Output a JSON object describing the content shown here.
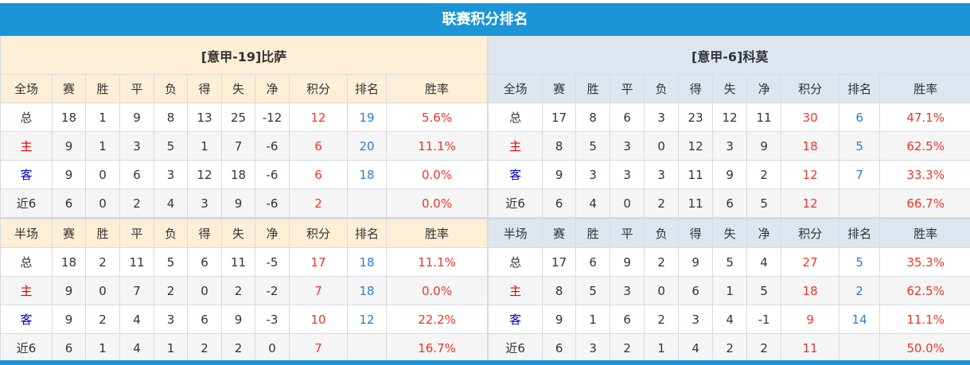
{
  "title": "联赛积分排名",
  "columns": [
    "赛",
    "胜",
    "平",
    "负",
    "得",
    "失",
    "净",
    "积分",
    "排名",
    "胜率"
  ],
  "teams": [
    {
      "header": "[意甲-19]比萨",
      "sections": [
        {
          "label": "全场",
          "rows": [
            [
              "总",
              "18",
              "1",
              "9",
              "8",
              "13",
              "25",
              "-12",
              "12",
              "19",
              "5.6%"
            ],
            [
              "主",
              "9",
              "1",
              "3",
              "5",
              "1",
              "7",
              "-6",
              "6",
              "20",
              "11.1%"
            ],
            [
              "客",
              "9",
              "0",
              "6",
              "3",
              "12",
              "18",
              "-6",
              "6",
              "18",
              "0.0%"
            ],
            [
              "近6",
              "6",
              "0",
              "2",
              "4",
              "3",
              "9",
              "-6",
              "2",
              "",
              "0.0%"
            ]
          ]
        },
        {
          "label": "半场",
          "rows": [
            [
              "总",
              "18",
              "2",
              "11",
              "5",
              "6",
              "11",
              "-5",
              "17",
              "18",
              "11.1%"
            ],
            [
              "主",
              "9",
              "0",
              "7",
              "2",
              "0",
              "2",
              "-2",
              "7",
              "18",
              "0.0%"
            ],
            [
              "客",
              "9",
              "2",
              "4",
              "3",
              "6",
              "9",
              "-3",
              "10",
              "12",
              "22.2%"
            ],
            [
              "近6",
              "6",
              "1",
              "4",
              "1",
              "2",
              "2",
              "0",
              "7",
              "",
              "16.7%"
            ]
          ]
        }
      ]
    },
    {
      "header": "[意甲-6]科莫",
      "sections": [
        {
          "label": "全场",
          "rows": [
            [
              "总",
              "17",
              "8",
              "6",
              "3",
              "23",
              "12",
              "11",
              "30",
              "6",
              "47.1%"
            ],
            [
              "主",
              "8",
              "5",
              "3",
              "0",
              "12",
              "3",
              "9",
              "18",
              "5",
              "62.5%"
            ],
            [
              "客",
              "9",
              "3",
              "3",
              "3",
              "11",
              "9",
              "2",
              "12",
              "7",
              "33.3%"
            ],
            [
              "近6",
              "6",
              "4",
              "0",
              "2",
              "11",
              "6",
              "5",
              "12",
              "",
              "66.7%"
            ]
          ]
        },
        {
          "label": "半场",
          "rows": [
            [
              "总",
              "17",
              "6",
              "9",
              "2",
              "9",
              "5",
              "4",
              "27",
              "5",
              "35.3%"
            ],
            [
              "主",
              "8",
              "5",
              "3",
              "0",
              "6",
              "1",
              "5",
              "18",
              "2",
              "62.5%"
            ],
            [
              "客",
              "9",
              "1",
              "6",
              "2",
              "3",
              "4",
              "-1",
              "9",
              "14",
              "11.1%"
            ],
            [
              "近6",
              "6",
              "3",
              "2",
              "1",
              "4",
              "2",
              "2",
              "11",
              "",
              "50.0%"
            ]
          ]
        }
      ]
    }
  ]
}
